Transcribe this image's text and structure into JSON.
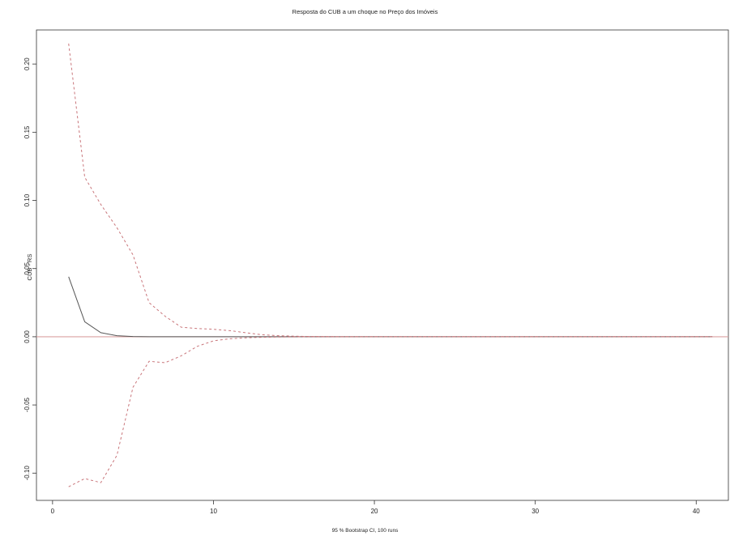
{
  "chart_data": {
    "type": "line",
    "title": "Resposta do CUB a um choque no Preço dos Imóveis",
    "xlabel": "95 % Bootstrap CI, 100 runs",
    "ylabel": "CUB - RS",
    "xlim": [
      -1,
      42
    ],
    "ylim": [
      -0.12,
      0.225
    ],
    "x_ticks": [
      0,
      10,
      20,
      30,
      40
    ],
    "y_ticks": [
      -0.1,
      -0.05,
      0.0,
      0.05,
      0.1,
      0.15,
      0.2
    ],
    "y_tick_labels": [
      "-0.10",
      "-0.05",
      "0.00",
      "0.05",
      "0.10",
      "0.15",
      "0.20"
    ],
    "zero_line_color": "#d9a0a0",
    "grid": false,
    "x": [
      1,
      2,
      3,
      4,
      5,
      6,
      7,
      8,
      9,
      10,
      11,
      12,
      13,
      14,
      15,
      16,
      17,
      18,
      19,
      20,
      21,
      22,
      23,
      24,
      25,
      26,
      27,
      28,
      29,
      30,
      31,
      32,
      33,
      34,
      35,
      36,
      37,
      38,
      39,
      40,
      41
    ],
    "series": [
      {
        "color": "#555555",
        "style": "solid",
        "values": [
          0.044,
          0.011,
          0.003,
          0.0008,
          0.0002,
          5e-05,
          0,
          0,
          0,
          0,
          0,
          0,
          0,
          0,
          0,
          0,
          0,
          0,
          0,
          0,
          0,
          0,
          0,
          0,
          0,
          0,
          0,
          0,
          0,
          0,
          0,
          0,
          0,
          0,
          0,
          0,
          0,
          0,
          0,
          0,
          0
        ]
      },
      {
        "color": "#c9757a",
        "style": "dashed",
        "values": [
          0.215,
          0.117,
          0.097,
          0.08,
          0.06,
          0.025,
          0.015,
          0.007,
          0.006,
          0.0055,
          0.0045,
          0.003,
          0.0015,
          0.0008,
          0.0004,
          0.0002,
          0.0001,
          0,
          0,
          0,
          0,
          0,
          0,
          0,
          0,
          0,
          0,
          0,
          0,
          0,
          0,
          0,
          0,
          0,
          0,
          0,
          0,
          0,
          0,
          0,
          0
        ]
      },
      {
        "color": "#c9757a",
        "style": "dashed",
        "values": [
          -0.11,
          -0.104,
          -0.107,
          -0.087,
          -0.037,
          -0.018,
          -0.019,
          -0.014,
          -0.007,
          -0.003,
          -0.0015,
          -0.0008,
          -0.0004,
          -0.0002,
          -0.0001,
          0,
          0,
          0,
          0,
          0,
          0,
          0,
          0,
          0,
          0,
          0,
          0,
          0,
          0,
          0,
          0,
          0,
          0,
          0,
          0,
          0,
          0,
          0,
          0,
          0,
          0
        ]
      }
    ]
  }
}
